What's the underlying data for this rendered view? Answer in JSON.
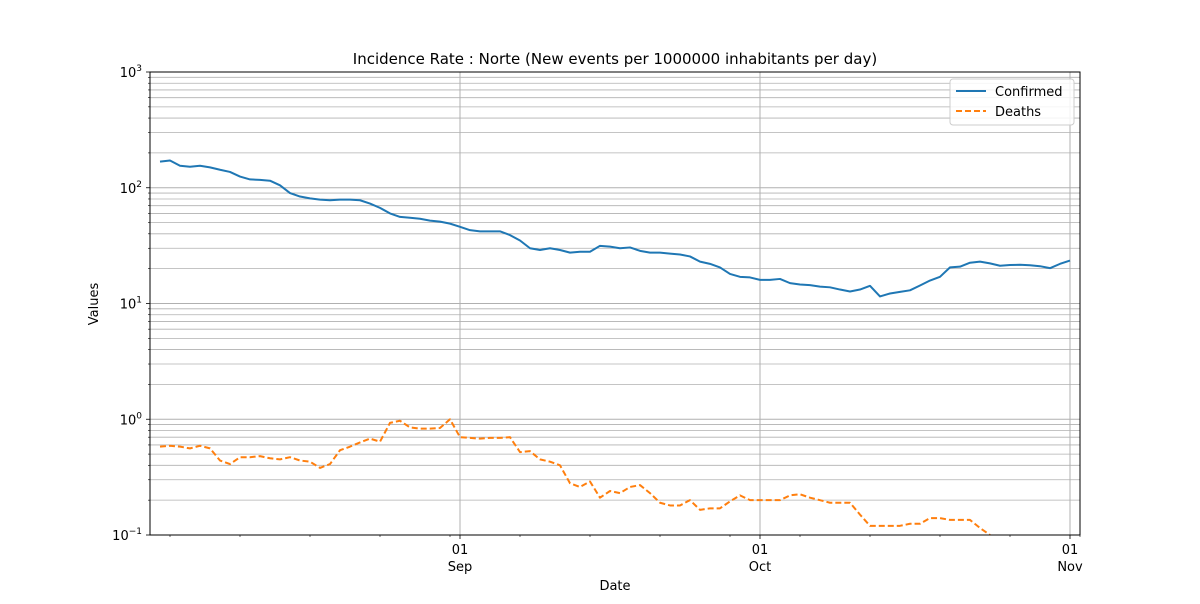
{
  "chart_data": {
    "type": "line",
    "title": "Incidence Rate : Norte  (New events per 1000000 inhabitants per day)",
    "xlabel": "Date",
    "ylabel": "Values",
    "yscale": "log",
    "ylim": [
      0.1,
      1000
    ],
    "xlim": [
      "2020-08-01",
      "2020-11-02"
    ],
    "grid": "on (major and minor)",
    "legend_position": "top-right",
    "x_ticks": [
      {
        "date": "2020-09-01",
        "day": "01",
        "month": "Sep"
      },
      {
        "date": "2020-10-01",
        "day": "01",
        "month": "Oct"
      },
      {
        "date": "2020-11-01",
        "day": "01",
        "month": "Nov"
      }
    ],
    "y_ticks": [
      {
        "value": 0.1,
        "base": "10",
        "exp": "−1"
      },
      {
        "value": 1,
        "base": "10",
        "exp": "0"
      },
      {
        "value": 10,
        "base": "10",
        "exp": "1"
      },
      {
        "value": 100,
        "base": "10",
        "exp": "2"
      },
      {
        "value": 1000,
        "base": "10",
        "exp": "3"
      }
    ],
    "series": [
      {
        "name": "Confirmed",
        "color": "#1f77b4",
        "style": "solid",
        "points": [
          [
            "2020-08-02",
            168
          ],
          [
            "2020-08-03",
            172
          ],
          [
            "2020-08-04",
            155
          ],
          [
            "2020-08-05",
            152
          ],
          [
            "2020-08-06",
            155
          ],
          [
            "2020-08-07",
            150
          ],
          [
            "2020-08-08",
            143
          ],
          [
            "2020-08-09",
            137
          ],
          [
            "2020-08-10",
            125
          ],
          [
            "2020-08-11",
            118
          ],
          [
            "2020-08-12",
            117
          ],
          [
            "2020-08-13",
            115
          ],
          [
            "2020-08-14",
            105
          ],
          [
            "2020-08-15",
            90
          ],
          [
            "2020-08-16",
            84
          ],
          [
            "2020-08-17",
            81
          ],
          [
            "2020-08-18",
            79
          ],
          [
            "2020-08-19",
            78
          ],
          [
            "2020-08-20",
            79
          ],
          [
            "2020-08-21",
            79
          ],
          [
            "2020-08-22",
            78
          ],
          [
            "2020-08-23",
            73
          ],
          [
            "2020-08-24",
            67
          ],
          [
            "2020-08-25",
            60
          ],
          [
            "2020-08-26",
            56
          ],
          [
            "2020-08-27",
            55
          ],
          [
            "2020-08-28",
            54
          ],
          [
            "2020-08-29",
            52
          ],
          [
            "2020-08-30",
            51
          ],
          [
            "2020-08-31",
            49
          ],
          [
            "2020-09-01",
            46
          ],
          [
            "2020-09-02",
            43
          ],
          [
            "2020-09-03",
            42
          ],
          [
            "2020-09-04",
            42
          ],
          [
            "2020-09-05",
            42
          ],
          [
            "2020-09-06",
            39
          ],
          [
            "2020-09-07",
            35
          ],
          [
            "2020-09-08",
            30
          ],
          [
            "2020-09-09",
            29
          ],
          [
            "2020-09-10",
            30
          ],
          [
            "2020-09-11",
            29
          ],
          [
            "2020-09-12",
            27.5
          ],
          [
            "2020-09-13",
            28
          ],
          [
            "2020-09-14",
            28
          ],
          [
            "2020-09-15",
            31.5
          ],
          [
            "2020-09-16",
            31
          ],
          [
            "2020-09-17",
            30
          ],
          [
            "2020-09-18",
            30.5
          ],
          [
            "2020-09-19",
            28.5
          ],
          [
            "2020-09-20",
            27.5
          ],
          [
            "2020-09-21",
            27.5
          ],
          [
            "2020-09-22",
            27
          ],
          [
            "2020-09-23",
            26.5
          ],
          [
            "2020-09-24",
            25.5
          ],
          [
            "2020-09-25",
            23
          ],
          [
            "2020-09-26",
            22
          ],
          [
            "2020-09-27",
            20.5
          ],
          [
            "2020-09-28",
            18
          ],
          [
            "2020-09-29",
            17
          ],
          [
            "2020-09-30",
            16.8
          ],
          [
            "2020-10-01",
            16
          ],
          [
            "2020-10-02",
            16
          ],
          [
            "2020-10-03",
            16.3
          ],
          [
            "2020-10-04",
            15
          ],
          [
            "2020-10-05",
            14.6
          ],
          [
            "2020-10-06",
            14.4
          ],
          [
            "2020-10-07",
            14
          ],
          [
            "2020-10-08",
            13.8
          ],
          [
            "2020-10-09",
            13.2
          ],
          [
            "2020-10-10",
            12.7
          ],
          [
            "2020-10-11",
            13.2
          ],
          [
            "2020-10-12",
            14.2
          ],
          [
            "2020-10-13",
            11.5
          ],
          [
            "2020-10-14",
            12.2
          ],
          [
            "2020-10-15",
            12.6
          ],
          [
            "2020-10-16",
            13
          ],
          [
            "2020-10-17",
            14.3
          ],
          [
            "2020-10-18",
            15.8
          ],
          [
            "2020-10-19",
            17
          ],
          [
            "2020-10-20",
            20.5
          ],
          [
            "2020-10-21",
            20.8
          ],
          [
            "2020-10-22",
            22.5
          ],
          [
            "2020-10-23",
            23
          ],
          [
            "2020-10-24",
            22.2
          ],
          [
            "2020-10-25",
            21.2
          ],
          [
            "2020-10-26",
            21.5
          ],
          [
            "2020-10-27",
            21.6
          ],
          [
            "2020-10-28",
            21.4
          ],
          [
            "2020-10-29",
            21
          ],
          [
            "2020-10-30",
            20.2
          ],
          [
            "2020-10-31",
            22
          ],
          [
            "2020-11-01",
            23.5
          ]
        ]
      },
      {
        "name": "Deaths",
        "color": "#ff7f0e",
        "style": "dashed",
        "points": [
          [
            "2020-08-02",
            0.58
          ],
          [
            "2020-08-03",
            0.59
          ],
          [
            "2020-08-04",
            0.58
          ],
          [
            "2020-08-05",
            0.56
          ],
          [
            "2020-08-06",
            0.59
          ],
          [
            "2020-08-07",
            0.56
          ],
          [
            "2020-08-08",
            0.44
          ],
          [
            "2020-08-09",
            0.41
          ],
          [
            "2020-08-10",
            0.47
          ],
          [
            "2020-08-11",
            0.47
          ],
          [
            "2020-08-12",
            0.48
          ],
          [
            "2020-08-13",
            0.46
          ],
          [
            "2020-08-14",
            0.45
          ],
          [
            "2020-08-15",
            0.47
          ],
          [
            "2020-08-16",
            0.44
          ],
          [
            "2020-08-17",
            0.43
          ],
          [
            "2020-08-18",
            0.38
          ],
          [
            "2020-08-19",
            0.41
          ],
          [
            "2020-08-20",
            0.54
          ],
          [
            "2020-08-21",
            0.58
          ],
          [
            "2020-08-22",
            0.63
          ],
          [
            "2020-08-23",
            0.68
          ],
          [
            "2020-08-24",
            0.64
          ],
          [
            "2020-08-25",
            0.93
          ],
          [
            "2020-08-26",
            0.97
          ],
          [
            "2020-08-27",
            0.85
          ],
          [
            "2020-08-28",
            0.83
          ],
          [
            "2020-08-29",
            0.83
          ],
          [
            "2020-08-30",
            0.84
          ],
          [
            "2020-08-31",
            1.0
          ],
          [
            "2020-09-01",
            0.7
          ],
          [
            "2020-09-02",
            0.69
          ],
          [
            "2020-09-03",
            0.68
          ],
          [
            "2020-09-04",
            0.69
          ],
          [
            "2020-09-05",
            0.69
          ],
          [
            "2020-09-06",
            0.7
          ],
          [
            "2020-09-07",
            0.52
          ],
          [
            "2020-09-08",
            0.53
          ],
          [
            "2020-09-09",
            0.45
          ],
          [
            "2020-09-10",
            0.43
          ],
          [
            "2020-09-11",
            0.4
          ],
          [
            "2020-09-12",
            0.28
          ],
          [
            "2020-09-13",
            0.26
          ],
          [
            "2020-09-14",
            0.29
          ],
          [
            "2020-09-15",
            0.21
          ],
          [
            "2020-09-16",
            0.24
          ],
          [
            "2020-09-17",
            0.23
          ],
          [
            "2020-09-18",
            0.26
          ],
          [
            "2020-09-19",
            0.27
          ],
          [
            "2020-09-20",
            0.23
          ],
          [
            "2020-09-21",
            0.19
          ],
          [
            "2020-09-22",
            0.18
          ],
          [
            "2020-09-23",
            0.18
          ],
          [
            "2020-09-24",
            0.2
          ],
          [
            "2020-09-25",
            0.165
          ],
          [
            "2020-09-26",
            0.17
          ],
          [
            "2020-09-27",
            0.17
          ],
          [
            "2020-09-28",
            0.195
          ],
          [
            "2020-09-29",
            0.22
          ],
          [
            "2020-09-30",
            0.2
          ],
          [
            "2020-10-01",
            0.2
          ],
          [
            "2020-10-02",
            0.2
          ],
          [
            "2020-10-03",
            0.2
          ],
          [
            "2020-10-04",
            0.22
          ],
          [
            "2020-10-05",
            0.225
          ],
          [
            "2020-10-06",
            0.21
          ],
          [
            "2020-10-07",
            0.2
          ],
          [
            "2020-10-08",
            0.19
          ],
          [
            "2020-10-09",
            0.19
          ],
          [
            "2020-10-10",
            0.19
          ],
          [
            "2020-10-11",
            0.15
          ],
          [
            "2020-10-12",
            0.12
          ],
          [
            "2020-10-13",
            0.12
          ],
          [
            "2020-10-14",
            0.12
          ],
          [
            "2020-10-15",
            0.12
          ],
          [
            "2020-10-16",
            0.125
          ],
          [
            "2020-10-17",
            0.125
          ],
          [
            "2020-10-18",
            0.14
          ],
          [
            "2020-10-19",
            0.14
          ],
          [
            "2020-10-20",
            0.135
          ],
          [
            "2020-10-21",
            0.135
          ],
          [
            "2020-10-22",
            0.135
          ],
          [
            "2020-10-23",
            0.115
          ],
          [
            "2020-10-24",
            0.1
          ]
        ]
      }
    ]
  }
}
